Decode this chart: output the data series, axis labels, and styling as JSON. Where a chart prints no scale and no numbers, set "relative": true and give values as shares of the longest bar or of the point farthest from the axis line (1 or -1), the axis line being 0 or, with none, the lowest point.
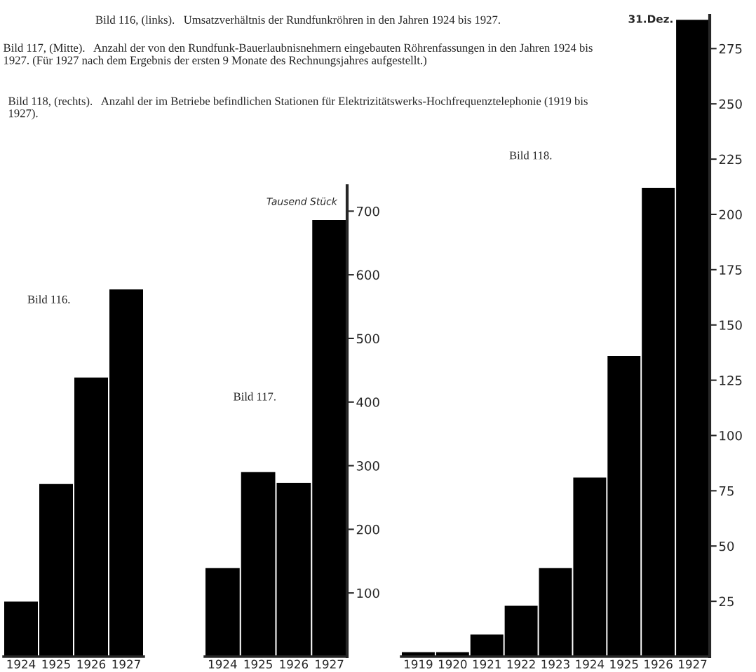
{
  "chart_data": [
    {
      "type": "bar",
      "title": "Bild 116, (links).   Umsatzverhältnis der Rundfunkröhren in den Jahren 1924 bis 1927.",
      "annotations": [
        "Bild 116."
      ],
      "categories": [
        "1924",
        "1925",
        "1926",
        "1927"
      ],
      "values": [
        0.15,
        0.47,
        0.76,
        1
      ],
      "color": "#000000",
      "relative": true,
      "grid": false,
      "legend": false
    },
    {
      "type": "bar",
      "title": "Bild 117, (Mitte).   Anzahl der von den Rundfunk-Bauerlaubnisnehmern eingebauten Röhrenfassungen in den Jahren 1924 bis 1927. (Für 1927 nach dem Ergebnis der ersten 9 Monate des Rechnungsjahres aufgestellt.)",
      "ylabel": "Tausend Stück",
      "annotations": [
        "Bild 117."
      ],
      "categories": [
        "1924",
        "1925",
        "1926",
        "1927"
      ],
      "values": [
        139,
        290,
        273,
        686
      ],
      "color": "#000000",
      "ylim": [
        0,
        740
      ],
      "yticks": [
        100,
        200,
        300,
        400,
        500,
        600,
        700
      ],
      "grid": false,
      "legend": false
    },
    {
      "type": "bar",
      "title": "Bild 118, (rechts).   Anzahl der im Betriebe befindlichen Stationen für Elektrizitätswerks-Hochfrequenztelephonie (1919 bis 1927).",
      "annotations": [
        "Bild 118.",
        {
          "text": "31.Dez.",
          "x": "1927",
          "y": 288
        }
      ],
      "categories": [
        "1919",
        "1920",
        "1921",
        "1922",
        "1923",
        "1924",
        "1925",
        "1926",
        "1927"
      ],
      "values": [
        2,
        2,
        10,
        23,
        40,
        81,
        136,
        212,
        288
      ],
      "color": "#000000",
      "ylim": [
        0,
        290
      ],
      "yticks": [
        25,
        50,
        75,
        100,
        125,
        150,
        175,
        200,
        225,
        250,
        275
      ],
      "grid": false,
      "legend": false
    }
  ]
}
